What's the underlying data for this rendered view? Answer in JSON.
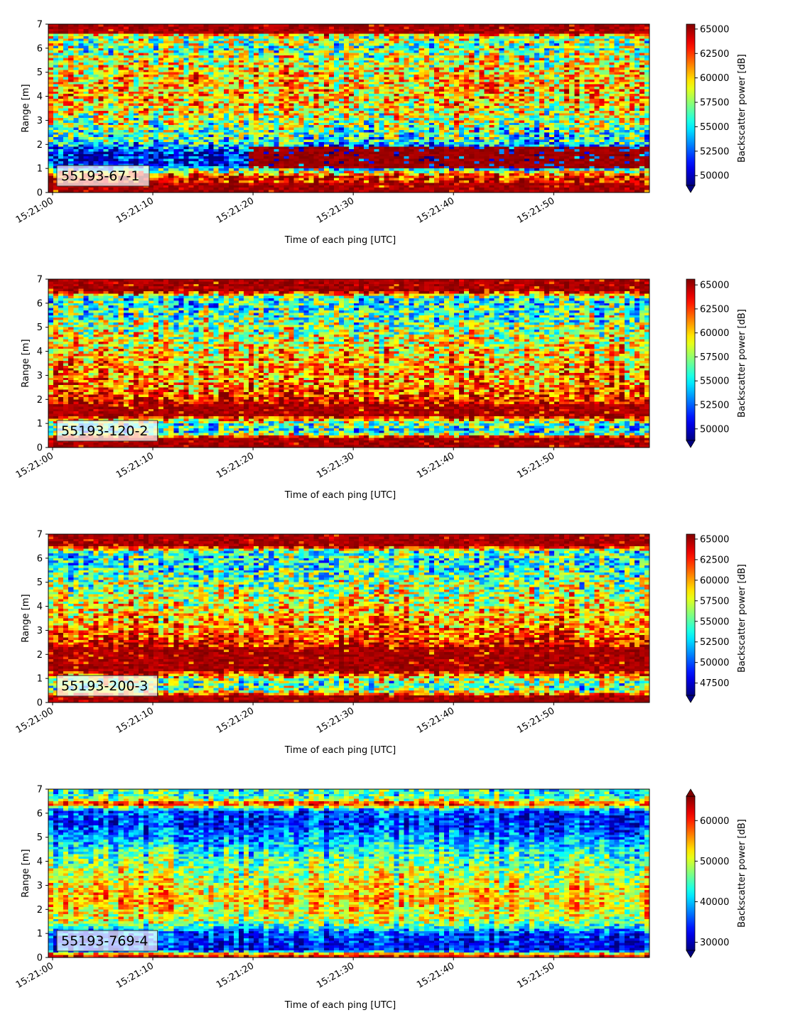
{
  "chart_data": [
    {
      "type": "heatmap",
      "label": "55193-67-1",
      "xlabel": "Time of each ping [UTC]",
      "ylabel": "Range [m]",
      "xticks": [
        "15:21:00",
        "15:21:10",
        "15:21:20",
        "15:21:30",
        "15:21:40",
        "15:21:50"
      ],
      "yticks": [
        "0",
        "1",
        "2",
        "3",
        "4",
        "5",
        "6",
        "7"
      ],
      "xlim": [
        "15:21:00",
        "15:21:59"
      ],
      "ylim": [
        0,
        7
      ],
      "colorbar": {
        "label": "Backscatter power [dB]",
        "colormap": "jet",
        "vmin": 49000,
        "vmax": 65500,
        "extend": "min",
        "ticks": [
          "50000",
          "52500",
          "55000",
          "57500",
          "60000",
          "62500",
          "65000"
        ]
      },
      "profile": [
        {
          "range": 0.0,
          "level": 0.95
        },
        {
          "range": 0.25,
          "level": 0.92
        },
        {
          "range": 0.7,
          "level": 0.85
        },
        {
          "range": 1.1,
          "level": 0.15
        },
        {
          "range": 1.6,
          "level": 0.1
        },
        {
          "range": 2.1,
          "level": 0.4
        },
        {
          "range": 3.0,
          "level": 0.55
        },
        {
          "range": 4.0,
          "level": 0.7
        },
        {
          "range": 5.0,
          "level": 0.65
        },
        {
          "range": 6.0,
          "level": 0.5
        },
        {
          "range": 6.5,
          "level": 0.55
        },
        {
          "range": 6.65,
          "level": 0.98
        },
        {
          "range": 7.0,
          "level": 0.98
        }
      ],
      "noise": 0.28,
      "secondary_band": {
        "start_time": "15:21:20",
        "range_min": 1.0,
        "range_max": 1.9,
        "level": 0.97
      }
    },
    {
      "type": "heatmap",
      "label": "55193-120-2",
      "xlabel": "Time of each ping [UTC]",
      "ylabel": "Range [m]",
      "xticks": [
        "15:21:00",
        "15:21:10",
        "15:21:20",
        "15:21:30",
        "15:21:40",
        "15:21:50"
      ],
      "yticks": [
        "0",
        "1",
        "2",
        "3",
        "4",
        "5",
        "6",
        "7"
      ],
      "xlim": [
        "15:21:00",
        "15:21:59"
      ],
      "ylim": [
        0,
        7
      ],
      "colorbar": {
        "label": "Backscatter power [dB]",
        "colormap": "jet",
        "vmin": 48800,
        "vmax": 65600,
        "extend": "min",
        "ticks": [
          "50000",
          "52500",
          "55000",
          "57500",
          "60000",
          "62500",
          "65000"
        ]
      },
      "profile": [
        {
          "range": 0.0,
          "level": 0.95
        },
        {
          "range": 0.4,
          "level": 0.95
        },
        {
          "range": 0.6,
          "level": 0.4
        },
        {
          "range": 1.0,
          "level": 0.45
        },
        {
          "range": 1.3,
          "level": 0.92
        },
        {
          "range": 1.8,
          "level": 0.9
        },
        {
          "range": 2.5,
          "level": 0.75
        },
        {
          "range": 3.5,
          "level": 0.7
        },
        {
          "range": 4.5,
          "level": 0.6
        },
        {
          "range": 5.5,
          "level": 0.45
        },
        {
          "range": 6.2,
          "level": 0.4
        },
        {
          "range": 6.5,
          "level": 0.95
        },
        {
          "range": 7.0,
          "level": 0.95
        }
      ],
      "noise": 0.27
    },
    {
      "type": "heatmap",
      "label": "55193-200-3",
      "xlabel": "Time of each ping [UTC]",
      "ylabel": "Range [m]",
      "xticks": [
        "15:21:00",
        "15:21:10",
        "15:21:20",
        "15:21:30",
        "15:21:40",
        "15:21:50"
      ],
      "yticks": [
        "0",
        "1",
        "2",
        "3",
        "4",
        "5",
        "6",
        "7"
      ],
      "xlim": [
        "15:21:00",
        "15:21:59"
      ],
      "ylim": [
        0,
        7
      ],
      "colorbar": {
        "label": "Backscatter power [dB]",
        "colormap": "jet",
        "vmin": 46000,
        "vmax": 65600,
        "extend": "min",
        "ticks": [
          "47500",
          "50000",
          "52500",
          "55000",
          "57500",
          "60000",
          "62500",
          "65000"
        ]
      },
      "profile": [
        {
          "range": 0.0,
          "level": 0.95
        },
        {
          "range": 0.3,
          "level": 0.92
        },
        {
          "range": 0.5,
          "level": 0.45
        },
        {
          "range": 0.9,
          "level": 0.5
        },
        {
          "range": 1.3,
          "level": 0.92
        },
        {
          "range": 2.2,
          "level": 0.92
        },
        {
          "range": 3.0,
          "level": 0.75
        },
        {
          "range": 4.0,
          "level": 0.62
        },
        {
          "range": 5.0,
          "level": 0.5
        },
        {
          "range": 5.8,
          "level": 0.38
        },
        {
          "range": 6.3,
          "level": 0.45
        },
        {
          "range": 6.5,
          "level": 0.96
        },
        {
          "range": 7.0,
          "level": 0.96
        }
      ],
      "noise": 0.26
    },
    {
      "type": "heatmap",
      "label": "55193-769-4",
      "xlabel": "Time of each ping [UTC]",
      "ylabel": "Range [m]",
      "xticks": [
        "15:21:00",
        "15:21:10",
        "15:21:20",
        "15:21:30",
        "15:21:40",
        "15:21:50"
      ],
      "yticks": [
        "0",
        "1",
        "2",
        "3",
        "4",
        "5",
        "6",
        "7"
      ],
      "xlim": [
        "15:21:00",
        "15:21:59"
      ],
      "ylim": [
        0,
        7
      ],
      "colorbar": {
        "label": "Backscatter power [dB]",
        "colormap": "jet",
        "vmin": 28000,
        "vmax": 66000,
        "extend": "both",
        "ticks": [
          "30000",
          "40000",
          "50000",
          "60000"
        ]
      },
      "profile": [
        {
          "range": 0.0,
          "level": 0.98
        },
        {
          "range": 0.15,
          "level": 0.7
        },
        {
          "range": 0.3,
          "level": 0.12
        },
        {
          "range": 1.0,
          "level": 0.18
        },
        {
          "range": 1.5,
          "level": 0.55
        },
        {
          "range": 2.5,
          "level": 0.68
        },
        {
          "range": 3.5,
          "level": 0.55
        },
        {
          "range": 4.5,
          "level": 0.38
        },
        {
          "range": 5.5,
          "level": 0.15
        },
        {
          "range": 6.1,
          "level": 0.2
        },
        {
          "range": 6.4,
          "level": 0.9
        },
        {
          "range": 6.6,
          "level": 0.45
        },
        {
          "range": 7.0,
          "level": 0.4
        }
      ],
      "noise": 0.18
    }
  ]
}
